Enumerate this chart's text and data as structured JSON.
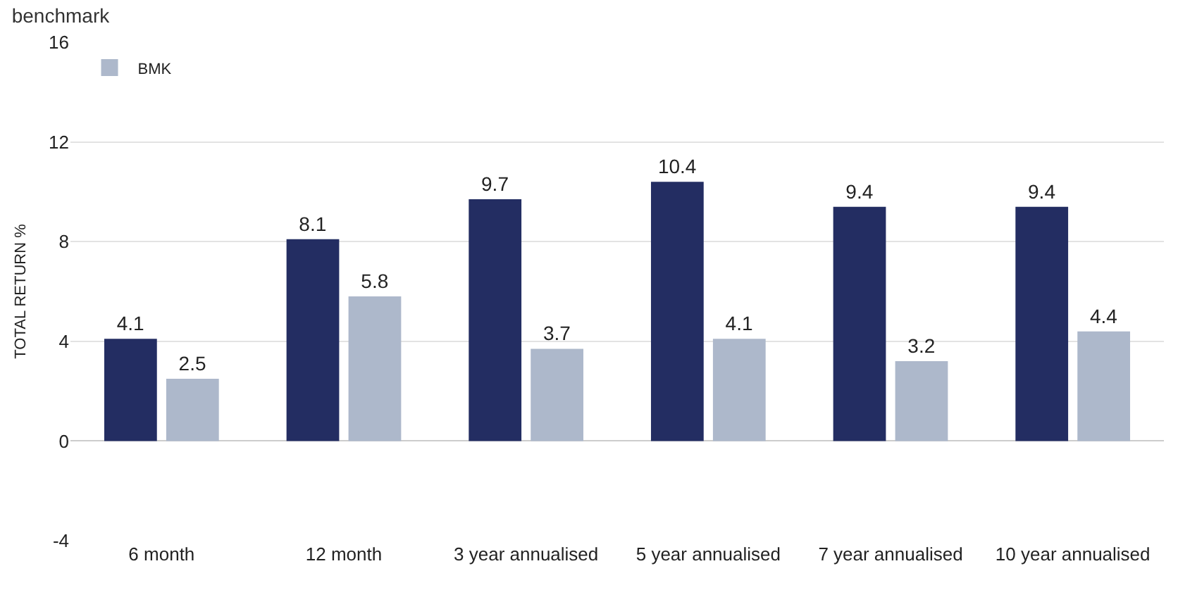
{
  "chart_data": {
    "type": "bar",
    "title": "benchmark",
    "ylabel": "TOTAL RETURN %",
    "categories": [
      "6 month",
      "12 month",
      "3 year annualised",
      "5 year annualised",
      "7 year annualised",
      "10 year annualised"
    ],
    "series": [
      {
        "color": "#232d62",
        "values": [
          4.1,
          8.1,
          9.7,
          10.4,
          9.4,
          9.4
        ]
      },
      {
        "name": "BMK",
        "color": "#adb8cb",
        "values": [
          2.5,
          5.8,
          3.7,
          4.1,
          3.2,
          4.4
        ]
      }
    ],
    "ylim": [
      -4,
      16
    ],
    "yticks": [
      -4,
      0,
      4,
      8,
      12,
      16
    ],
    "grid": "y",
    "legend": "top left",
    "data_labels": true
  }
}
